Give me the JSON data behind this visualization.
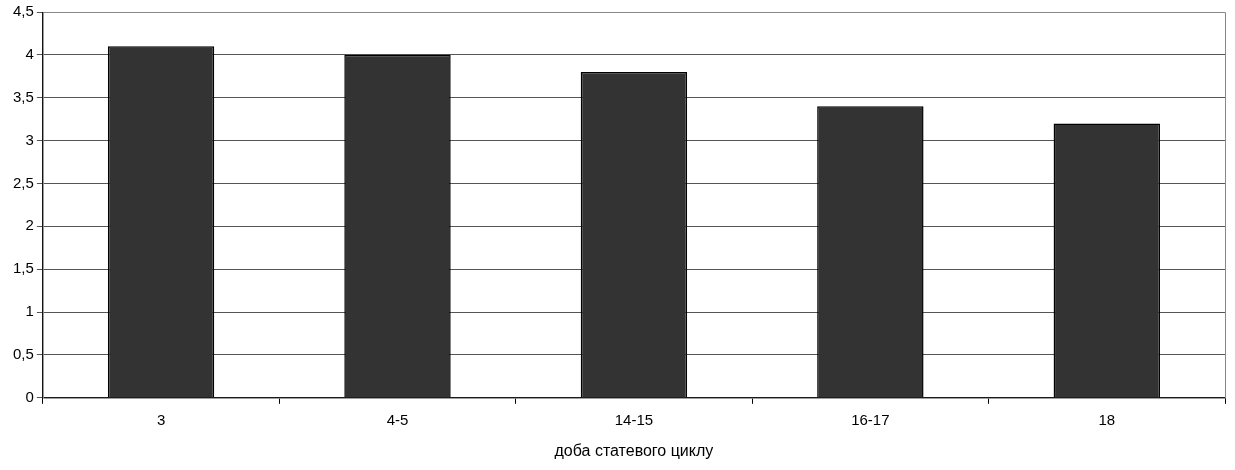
{
  "chart_data": {
    "type": "bar",
    "xlabel": "доба статевого циклу",
    "categories": [
      "3",
      "4-5",
      "14-15",
      "16-17",
      "18"
    ],
    "values": [
      4.1,
      4.0,
      3.8,
      3.4,
      3.2
    ],
    "color": "#333333",
    "ylim": [
      0,
      4.5
    ],
    "yticks": [
      0,
      {
        "value": 0.5,
        "label": "0,5"
      },
      1,
      {
        "value": 1.5,
        "label": "1,5"
      },
      2,
      {
        "value": 2.5,
        "label": "2,5"
      },
      3,
      {
        "value": 3.5,
        "label": "3,5"
      },
      4,
      {
        "value": 4.5,
        "label": "4,5"
      }
    ],
    "grid": "y",
    "legend": false
  }
}
